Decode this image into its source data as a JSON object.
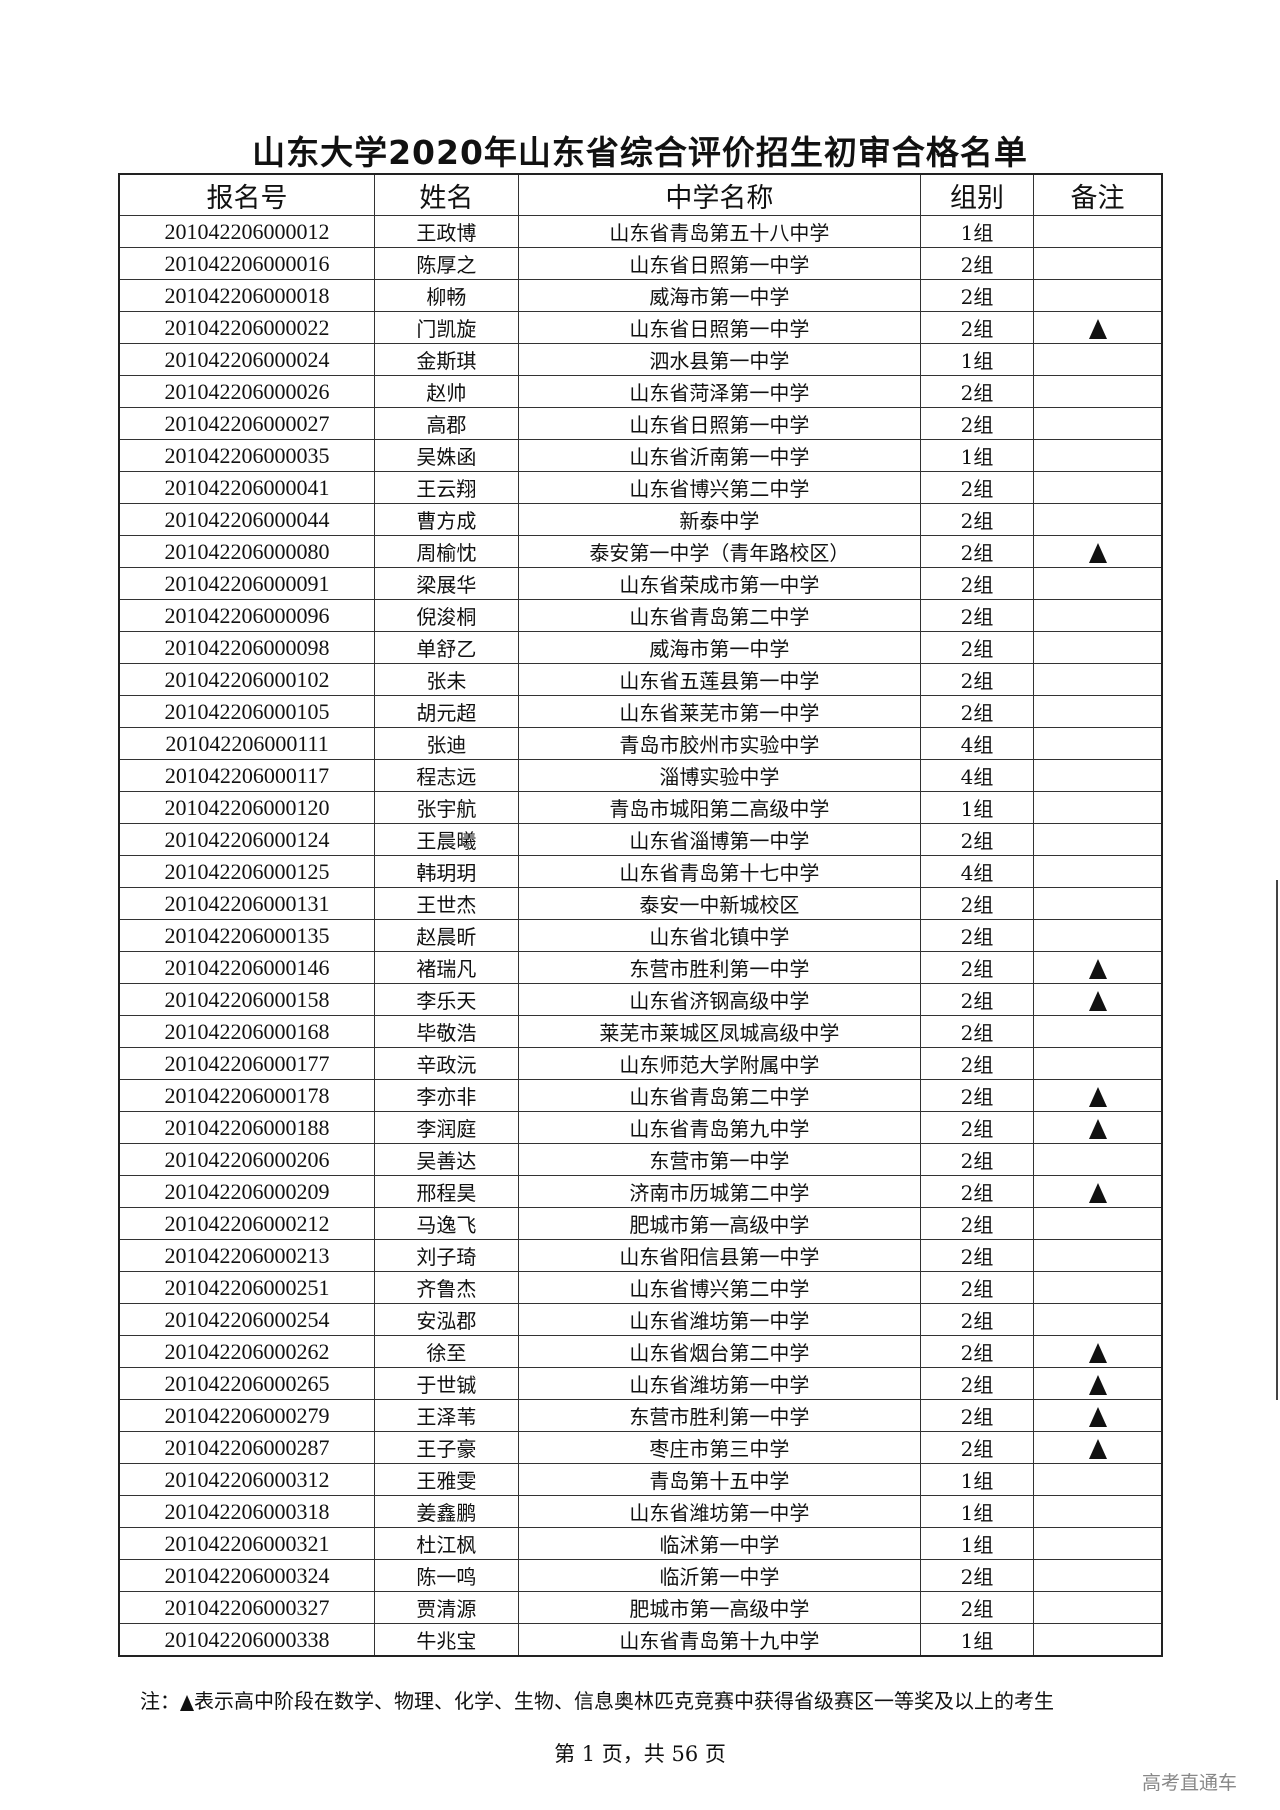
{
  "title": "山东大学2020年山东省综合评价招生初审合格名单",
  "columns": [
    "报名号",
    "姓名",
    "中学名称",
    "组别",
    "备注"
  ],
  "marker_icon": "black-triangle",
  "rows": [
    {
      "id": "201042206000012",
      "name": "王政博",
      "school": "山东省青岛第五十八中学",
      "group": "1组",
      "mark": false
    },
    {
      "id": "201042206000016",
      "name": "陈厚之",
      "school": "山东省日照第一中学",
      "group": "2组",
      "mark": false
    },
    {
      "id": "201042206000018",
      "name": "柳畅",
      "school": "威海市第一中学",
      "group": "2组",
      "mark": false
    },
    {
      "id": "201042206000022",
      "name": "门凯旋",
      "school": "山东省日照第一中学",
      "group": "2组",
      "mark": true
    },
    {
      "id": "201042206000024",
      "name": "金斯琪",
      "school": "泗水县第一中学",
      "group": "1组",
      "mark": false
    },
    {
      "id": "201042206000026",
      "name": "赵帅",
      "school": "山东省菏泽第一中学",
      "group": "2组",
      "mark": false
    },
    {
      "id": "201042206000027",
      "name": "高郡",
      "school": "山东省日照第一中学",
      "group": "2组",
      "mark": false
    },
    {
      "id": "201042206000035",
      "name": "吴姝函",
      "school": "山东省沂南第一中学",
      "group": "1组",
      "mark": false
    },
    {
      "id": "201042206000041",
      "name": "王云翔",
      "school": "山东省博兴第二中学",
      "group": "2组",
      "mark": false
    },
    {
      "id": "201042206000044",
      "name": "曹方成",
      "school": "新泰中学",
      "group": "2组",
      "mark": false
    },
    {
      "id": "201042206000080",
      "name": "周榆忱",
      "school": "泰安第一中学（青年路校区）",
      "group": "2组",
      "mark": true
    },
    {
      "id": "201042206000091",
      "name": "梁展华",
      "school": "山东省荣成市第一中学",
      "group": "2组",
      "mark": false
    },
    {
      "id": "201042206000096",
      "name": "倪浚桐",
      "school": "山东省青岛第二中学",
      "group": "2组",
      "mark": false
    },
    {
      "id": "201042206000098",
      "name": "单舒乙",
      "school": "威海市第一中学",
      "group": "2组",
      "mark": false
    },
    {
      "id": "201042206000102",
      "name": "张未",
      "school": "山东省五莲县第一中学",
      "group": "2组",
      "mark": false
    },
    {
      "id": "201042206000105",
      "name": "胡元超",
      "school": "山东省莱芜市第一中学",
      "group": "2组",
      "mark": false
    },
    {
      "id": "201042206000111",
      "name": "张迪",
      "school": "青岛市胶州市实验中学",
      "group": "4组",
      "mark": false
    },
    {
      "id": "201042206000117",
      "name": "程志远",
      "school": "淄博实验中学",
      "group": "4组",
      "mark": false
    },
    {
      "id": "201042206000120",
      "name": "张宇航",
      "school": "青岛市城阳第二高级中学",
      "group": "1组",
      "mark": false
    },
    {
      "id": "201042206000124",
      "name": "王晨曦",
      "school": "山东省淄博第一中学",
      "group": "2组",
      "mark": false
    },
    {
      "id": "201042206000125",
      "name": "韩玥玥",
      "school": "山东省青岛第十七中学",
      "group": "4组",
      "mark": false
    },
    {
      "id": "201042206000131",
      "name": "王世杰",
      "school": "泰安一中新城校区",
      "group": "2组",
      "mark": false
    },
    {
      "id": "201042206000135",
      "name": "赵晨昕",
      "school": "山东省北镇中学",
      "group": "2组",
      "mark": false
    },
    {
      "id": "201042206000146",
      "name": "褚瑞凡",
      "school": "东营市胜利第一中学",
      "group": "2组",
      "mark": true
    },
    {
      "id": "201042206000158",
      "name": "李乐天",
      "school": "山东省济钢高级中学",
      "group": "2组",
      "mark": true
    },
    {
      "id": "201042206000168",
      "name": "毕敬浩",
      "school": "莱芜市莱城区凤城高级中学",
      "group": "2组",
      "mark": false
    },
    {
      "id": "201042206000177",
      "name": "辛政沅",
      "school": "山东师范大学附属中学",
      "group": "2组",
      "mark": false
    },
    {
      "id": "201042206000178",
      "name": "李亦非",
      "school": "山东省青岛第二中学",
      "group": "2组",
      "mark": true
    },
    {
      "id": "201042206000188",
      "name": "李润庭",
      "school": "山东省青岛第九中学",
      "group": "2组",
      "mark": true
    },
    {
      "id": "201042206000206",
      "name": "吴善达",
      "school": "东营市第一中学",
      "group": "2组",
      "mark": false
    },
    {
      "id": "201042206000209",
      "name": "邢程昊",
      "school": "济南市历城第二中学",
      "group": "2组",
      "mark": true
    },
    {
      "id": "201042206000212",
      "name": "马逸飞",
      "school": "肥城市第一高级中学",
      "group": "2组",
      "mark": false
    },
    {
      "id": "201042206000213",
      "name": "刘子琦",
      "school": "山东省阳信县第一中学",
      "group": "2组",
      "mark": false
    },
    {
      "id": "201042206000251",
      "name": "齐鲁杰",
      "school": "山东省博兴第二中学",
      "group": "2组",
      "mark": false
    },
    {
      "id": "201042206000254",
      "name": "安泓郡",
      "school": "山东省潍坊第一中学",
      "group": "2组",
      "mark": false
    },
    {
      "id": "201042206000262",
      "name": "徐至",
      "school": "山东省烟台第二中学",
      "group": "2组",
      "mark": true
    },
    {
      "id": "201042206000265",
      "name": "于世铖",
      "school": "山东省潍坊第一中学",
      "group": "2组",
      "mark": true
    },
    {
      "id": "201042206000279",
      "name": "王泽苇",
      "school": "东营市胜利第一中学",
      "group": "2组",
      "mark": true
    },
    {
      "id": "201042206000287",
      "name": "王子豪",
      "school": "枣庄市第三中学",
      "group": "2组",
      "mark": true
    },
    {
      "id": "201042206000312",
      "name": "王雅雯",
      "school": "青岛第十五中学",
      "group": "1组",
      "mark": false
    },
    {
      "id": "201042206000318",
      "name": "姜鑫鹏",
      "school": "山东省潍坊第一中学",
      "group": "1组",
      "mark": false
    },
    {
      "id": "201042206000321",
      "name": "杜江枫",
      "school": "临沭第一中学",
      "group": "1组",
      "mark": false
    },
    {
      "id": "201042206000324",
      "name": "陈一鸣",
      "school": "临沂第一中学",
      "group": "2组",
      "mark": false
    },
    {
      "id": "201042206000327",
      "name": "贾清源",
      "school": "肥城市第一高级中学",
      "group": "2组",
      "mark": false
    },
    {
      "id": "201042206000338",
      "name": "牛兆宝",
      "school": "山东省青岛第十九中学",
      "group": "1组",
      "mark": false
    }
  ],
  "note": {
    "prefix": "注：",
    "text": "表示高中阶段在数学、物理、化学、生物、信息奥林匹克竞赛中获得省级赛区一等奖及以上的考生"
  },
  "page_info": "第 1 页，共 56 页",
  "watermark": "高考直通车"
}
